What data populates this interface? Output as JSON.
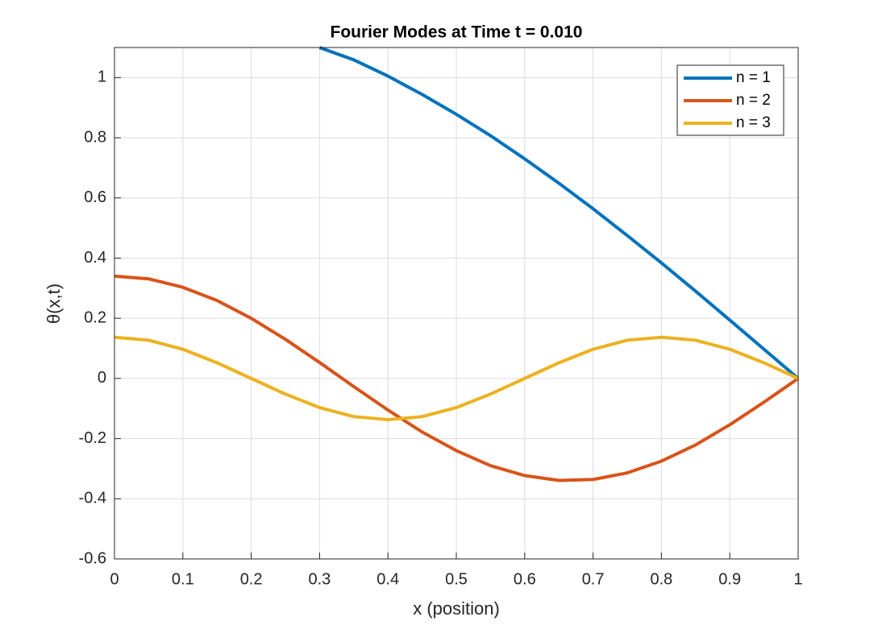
{
  "chart_data": {
    "type": "line",
    "title": "Fourier Modes at Time t = 0.010",
    "xlabel": "x (position)",
    "ylabel": "θ(x,t)",
    "x": [
      0,
      0.05,
      0.1,
      0.15,
      0.2,
      0.25,
      0.3,
      0.35,
      0.4,
      0.45,
      0.5,
      0.55,
      0.6,
      0.65,
      0.7,
      0.75,
      0.8,
      0.85,
      0.9,
      0.95,
      1
    ],
    "series": [
      {
        "name": "n = 1",
        "color": "#0072bd",
        "values": [
          null,
          null,
          null,
          null,
          null,
          null,
          1.1,
          1.059,
          1.005,
          0.944,
          0.878,
          0.807,
          0.73,
          0.649,
          0.564,
          0.475,
          0.384,
          0.29,
          0.194,
          0.097,
          0
        ]
      },
      {
        "name": "n = 2",
        "color": "#d95319",
        "values": [
          0.34,
          0.331,
          0.303,
          0.259,
          0.2,
          0.13,
          0.053,
          -0.027,
          -0.105,
          -0.178,
          -0.24,
          -0.29,
          -0.323,
          -0.339,
          -0.336,
          -0.314,
          -0.275,
          -0.221,
          -0.154,
          -0.079,
          0
        ]
      },
      {
        "name": "n = 3",
        "color": "#edb120",
        "values": [
          0.137,
          0.127,
          0.097,
          0.052,
          0,
          -0.052,
          -0.097,
          -0.127,
          -0.137,
          -0.127,
          -0.097,
          -0.052,
          0,
          0.052,
          0.097,
          0.127,
          0.137,
          0.127,
          0.097,
          0.052,
          0
        ]
      }
    ],
    "xlim": [
      0,
      1
    ],
    "ylim": [
      -0.6,
      1.1
    ],
    "xticks": [
      0,
      0.1,
      0.2,
      0.3,
      0.4,
      0.5,
      0.6,
      0.7,
      0.8,
      0.9,
      1
    ],
    "yticks": [
      -0.6,
      -0.4,
      -0.2,
      0,
      0.2,
      0.4,
      0.6,
      0.8,
      1
    ],
    "grid": true,
    "legend": "top-right"
  }
}
